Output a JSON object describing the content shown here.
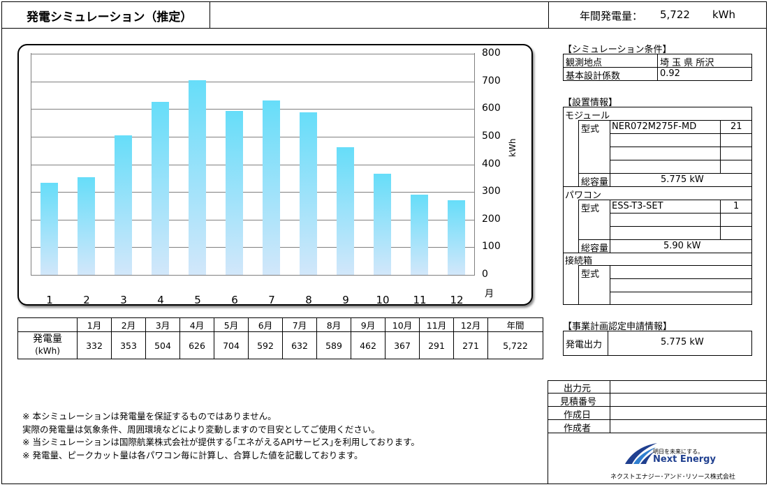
{
  "header": {
    "title": "発電シミュレーション（推定）",
    "annual_label": "年間発電量：",
    "annual_value": "5,722",
    "annual_unit": "kWh"
  },
  "chart_data": {
    "type": "bar",
    "categories": [
      "1",
      "2",
      "3",
      "4",
      "5",
      "6",
      "7",
      "8",
      "9",
      "10",
      "11",
      "12"
    ],
    "values": [
      332,
      353,
      504,
      626,
      704,
      592,
      632,
      589,
      462,
      367,
      291,
      271
    ],
    "ylabel": "kWh",
    "xlabel": "月",
    "ylim": [
      0,
      800
    ],
    "yticks": [
      "800",
      "700",
      "600",
      "500",
      "400",
      "300",
      "200",
      "100",
      "0"
    ],
    "grid": true,
    "color": "#66ddf9"
  },
  "monthly_table": {
    "headers": [
      "1月",
      "2月",
      "3月",
      "4月",
      "5月",
      "6月",
      "7月",
      "8月",
      "9月",
      "10月",
      "11月",
      "12月",
      "年間"
    ],
    "row_label": "発電量",
    "row_unit": "(kWh)",
    "values": [
      "332",
      "353",
      "504",
      "626",
      "704",
      "592",
      "632",
      "589",
      "462",
      "367",
      "291",
      "271",
      "5,722"
    ]
  },
  "conditions": {
    "heading": "【シミュレーション条件】",
    "location_label": "観測地点",
    "location_value": "埼 玉 県 所沢",
    "coef_label": "基本設計係数",
    "coef_value": "0.92"
  },
  "install": {
    "heading": "【設置情報】",
    "module_label": "モジュール",
    "module_type_label": "型式",
    "module_type": "NER072M275F-MD",
    "module_count": "21",
    "module_total_label": "総容量",
    "module_total": "5.775 kW",
    "pcs_label": "パワコン",
    "pcs_type_label": "型式",
    "pcs_type": "ESS-T3-SET",
    "pcs_count": "1",
    "pcs_total_label": "総容量",
    "pcs_total": "5.90 kW",
    "junction_label": "接続箱",
    "junction_type_label": "型式"
  },
  "plan": {
    "heading": "【事業計画認定申請情報】",
    "output_label": "発電出力",
    "output_value": "5.775 kW"
  },
  "meta": {
    "source_label": "出力元",
    "quote_label": "見積番号",
    "date_label": "作成日",
    "author_label": "作成者"
  },
  "notes": [
    "※  本シミュレーションは発電量を保証するものではありません。",
    "     実際の発電量は気象条件、周囲環境などにより変動しますので目安としてご使用ください。",
    "※  当シミュレーションは国際航業株式会社が提供する｢エネがえるAPIサービス｣を利用しております。",
    "※  発電量、ピークカット量は各パワコン毎に計算し、合算した値を記載しております。"
  ],
  "logo": {
    "tagline": "明日を未来にする。",
    "name": "Next Energy",
    "company": "ネクストエナジー･アンド･リソース株式会社",
    "brand_color": "#1f3f8f"
  }
}
